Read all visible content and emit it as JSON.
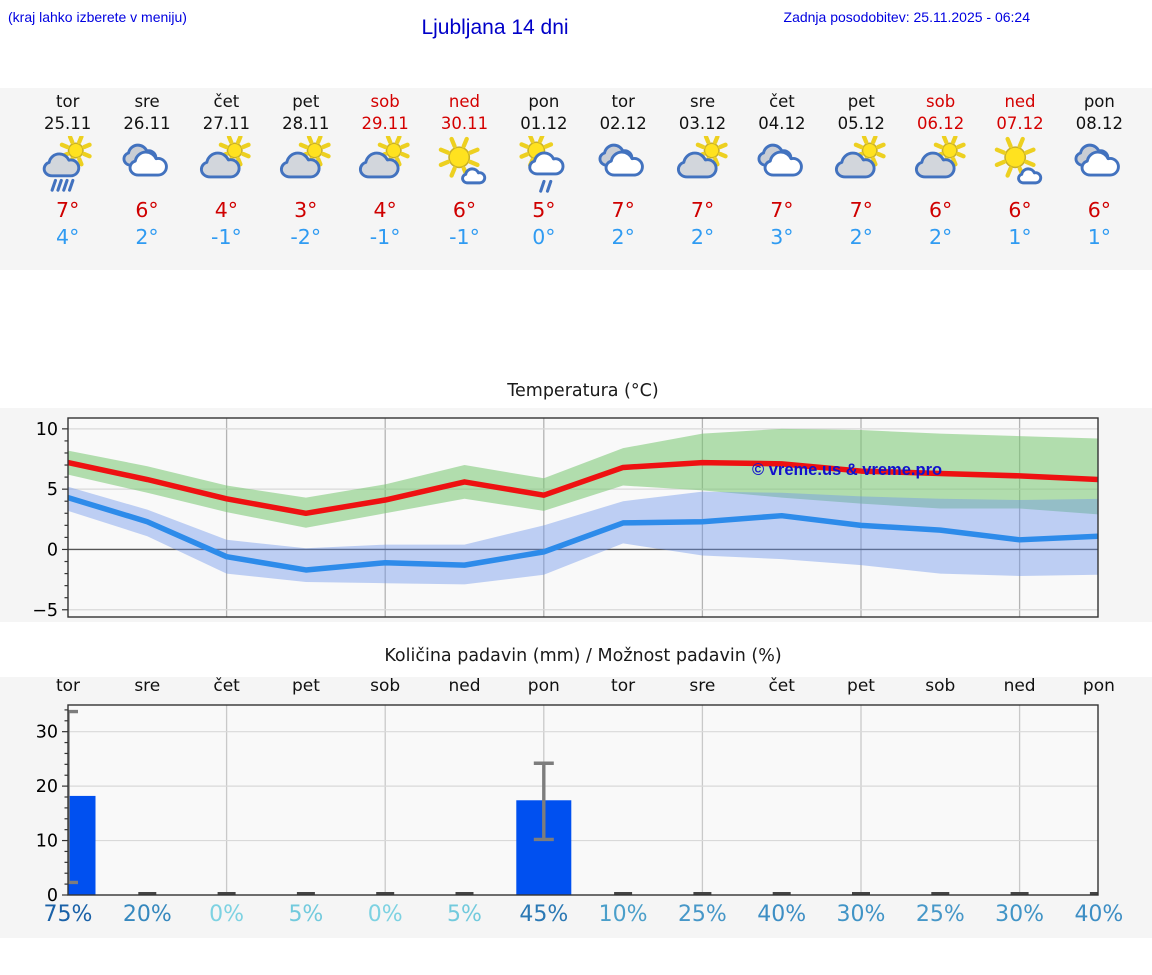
{
  "header": {
    "hint": "(kraj lahko izberete v meniju)",
    "title": "Ljubljana 14 dni",
    "last_update": "Zadnja posodobitev: 25.11.2025 - 06:24"
  },
  "forecast": {
    "days": [
      {
        "name": "tor",
        "date": "25.11",
        "icon": "sun-cloud-rain",
        "high": 7,
        "low": 4,
        "weekend": false
      },
      {
        "name": "sre",
        "date": "26.11",
        "icon": "cloudy",
        "high": 6,
        "low": 2,
        "weekend": false
      },
      {
        "name": "čet",
        "date": "27.11",
        "icon": "sun-cloud",
        "high": 4,
        "low": -1,
        "weekend": false
      },
      {
        "name": "pet",
        "date": "28.11",
        "icon": "sun-cloud",
        "high": 3,
        "low": -2,
        "weekend": false
      },
      {
        "name": "sob",
        "date": "29.11",
        "icon": "sun-cloud",
        "high": 4,
        "low": -1,
        "weekend": true
      },
      {
        "name": "ned",
        "date": "30.11",
        "icon": "mostly-sunny",
        "high": 6,
        "low": -1,
        "weekend": true
      },
      {
        "name": "pon",
        "date": "01.12",
        "icon": "sun-cloud-showers",
        "high": 5,
        "low": 0,
        "weekend": false
      },
      {
        "name": "tor",
        "date": "02.12",
        "icon": "cloudy",
        "high": 7,
        "low": 2,
        "weekend": false
      },
      {
        "name": "sre",
        "date": "03.12",
        "icon": "sun-cloud",
        "high": 7,
        "low": 2,
        "weekend": false
      },
      {
        "name": "čet",
        "date": "04.12",
        "icon": "cloudy",
        "high": 7,
        "low": 3,
        "weekend": false
      },
      {
        "name": "pet",
        "date": "05.12",
        "icon": "sun-cloud",
        "high": 7,
        "low": 2,
        "weekend": false
      },
      {
        "name": "sob",
        "date": "06.12",
        "icon": "sun-cloud",
        "high": 6,
        "low": 2,
        "weekend": true
      },
      {
        "name": "ned",
        "date": "07.12",
        "icon": "mostly-sunny",
        "high": 6,
        "low": 1,
        "weekend": true
      },
      {
        "name": "pon",
        "date": "08.12",
        "icon": "cloudy",
        "high": 6,
        "low": 1,
        "weekend": false
      }
    ]
  },
  "chart_data": [
    {
      "type": "line",
      "title": "Temperatura (°C)",
      "watermark": "© vreme.us & vreme.pro",
      "x_categories": [
        "tor",
        "sre",
        "čet",
        "pet",
        "sob",
        "ned",
        "pon",
        "tor",
        "sre",
        "čet",
        "pet",
        "sob",
        "ned",
        "pon"
      ],
      "ylim": [
        -5.6,
        10.9
      ],
      "yticks": [
        -5,
        0,
        5,
        10
      ],
      "grid_day_indices": [
        2,
        4,
        6,
        8,
        10,
        12
      ],
      "series": [
        {
          "name": "max temperature",
          "color": "#ee1111",
          "values": [
            7.2,
            5.8,
            4.2,
            3.0,
            4.1,
            5.6,
            4.5,
            6.8,
            7.2,
            7.1,
            6.5,
            6.3,
            6.1,
            5.8
          ],
          "band_upper": [
            8.2,
            6.9,
            5.3,
            4.3,
            5.4,
            7.0,
            5.9,
            8.4,
            9.6,
            10.0,
            9.9,
            9.6,
            9.4,
            9.2
          ],
          "band_lower": [
            6.2,
            4.7,
            3.1,
            1.8,
            3.0,
            4.2,
            3.2,
            5.3,
            4.9,
            4.3,
            3.8,
            3.4,
            3.4,
            2.9
          ],
          "band_color": "rgba(118,198,112,0.55)"
        },
        {
          "name": "min temperature",
          "color": "#2d8bea",
          "values": [
            4.3,
            2.3,
            -0.6,
            -1.7,
            -1.1,
            -1.3,
            -0.2,
            2.2,
            2.3,
            2.8,
            2.0,
            1.6,
            0.8,
            1.1
          ],
          "band_upper": [
            5.2,
            3.3,
            0.8,
            0.1,
            0.4,
            0.4,
            2.0,
            4.0,
            4.8,
            4.7,
            4.4,
            4.2,
            4.1,
            4.2
          ],
          "band_lower": [
            3.2,
            1.1,
            -2.0,
            -2.7,
            -2.8,
            -2.9,
            -2.1,
            0.5,
            -0.5,
            -0.8,
            -1.3,
            -2.0,
            -2.2,
            -2.1
          ],
          "band_color": "rgba(108,148,235,0.42)"
        }
      ]
    },
    {
      "type": "bar",
      "title": "Količina padavin (mm) / Možnost padavin (%)",
      "categories": [
        "tor",
        "sre",
        "čet",
        "pet",
        "sob",
        "ned",
        "pon",
        "tor",
        "sre",
        "čet",
        "pet",
        "sob",
        "ned",
        "pon"
      ],
      "values": [
        18.2,
        0,
        0,
        0,
        0,
        0,
        17.4,
        0,
        0,
        0,
        0,
        0,
        0,
        0
      ],
      "ylim": [
        0,
        34.9
      ],
      "yticks": [
        0,
        10,
        20,
        30
      ],
      "grid_day_indices": [
        2,
        4,
        6,
        8,
        10,
        12
      ],
      "bar_color": "#0050f0",
      "whiskers": [
        {
          "index": 0,
          "low": 2.3,
          "high": 33.7
        },
        {
          "index": 6,
          "low": 10.2,
          "high": 24.2
        }
      ],
      "probabilities": [
        {
          "label": "75%",
          "color": "#1961a8"
        },
        {
          "label": "20%",
          "color": "#3688be"
        },
        {
          "label": "0%",
          "color": "#7dd2e2"
        },
        {
          "label": "5%",
          "color": "#72cadd"
        },
        {
          "label": "0%",
          "color": "#7dd2e2"
        },
        {
          "label": "5%",
          "color": "#72cadd"
        },
        {
          "label": "45%",
          "color": "#2a78b4"
        },
        {
          "label": "10%",
          "color": "#4b9fca"
        },
        {
          "label": "25%",
          "color": "#4697c8"
        },
        {
          "label": "40%",
          "color": "#3d8ec4"
        },
        {
          "label": "30%",
          "color": "#4094c6"
        },
        {
          "label": "25%",
          "color": "#4697c8"
        },
        {
          "label": "30%",
          "color": "#4094c6"
        },
        {
          "label": "40%",
          "color": "#3d8ec4"
        }
      ]
    }
  ]
}
